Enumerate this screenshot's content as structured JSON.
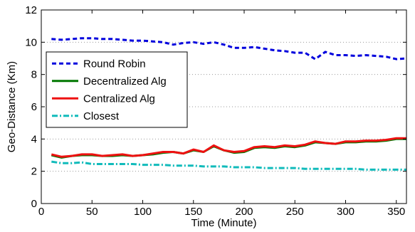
{
  "chart_data": {
    "type": "line",
    "title": "",
    "xlabel": "Time (Minute)",
    "ylabel": "Geo-Distance (Km)",
    "xlim": [
      0,
      360
    ],
    "ylim": [
      0,
      12
    ],
    "x_ticks": [
      0,
      50,
      100,
      150,
      200,
      250,
      300,
      350
    ],
    "y_ticks": [
      0,
      2,
      4,
      6,
      8,
      10,
      12
    ],
    "grid": "horizontal dotted",
    "legend_position": "left",
    "x": [
      10,
      20,
      30,
      40,
      50,
      60,
      70,
      80,
      90,
      100,
      110,
      120,
      130,
      140,
      150,
      160,
      170,
      180,
      190,
      200,
      210,
      220,
      230,
      240,
      250,
      260,
      270,
      280,
      290,
      300,
      310,
      320,
      330,
      340,
      350,
      360
    ],
    "series": [
      {
        "name": "Round Robin",
        "color": "#0000dd",
        "style": "dashed",
        "values": [
          10.2,
          10.15,
          10.2,
          10.25,
          10.25,
          10.2,
          10.2,
          10.15,
          10.1,
          10.1,
          10.05,
          10.0,
          9.85,
          9.95,
          10.0,
          9.9,
          10.0,
          9.85,
          9.65,
          9.65,
          9.7,
          9.6,
          9.5,
          9.45,
          9.35,
          9.35,
          8.95,
          9.4,
          9.2,
          9.2,
          9.15,
          9.2,
          9.15,
          9.1,
          8.95,
          9.0
        ]
      },
      {
        "name": "Decentralized Alg",
        "color": "#007700",
        "style": "solid",
        "values": [
          3.0,
          2.85,
          2.95,
          3.0,
          3.0,
          2.95,
          2.95,
          3.0,
          2.95,
          3.0,
          3.05,
          3.15,
          3.2,
          3.1,
          3.3,
          3.2,
          3.55,
          3.3,
          3.15,
          3.2,
          3.45,
          3.5,
          3.45,
          3.55,
          3.5,
          3.6,
          3.8,
          3.75,
          3.7,
          3.8,
          3.8,
          3.85,
          3.85,
          3.9,
          4.0,
          4.0
        ]
      },
      {
        "name": "Centralized Alg",
        "color": "#ee1111",
        "style": "solid",
        "values": [
          3.05,
          2.9,
          2.95,
          3.05,
          3.05,
          2.95,
          3.0,
          3.05,
          2.95,
          3.0,
          3.1,
          3.2,
          3.2,
          3.1,
          3.35,
          3.2,
          3.6,
          3.3,
          3.2,
          3.25,
          3.5,
          3.55,
          3.5,
          3.6,
          3.55,
          3.65,
          3.85,
          3.75,
          3.7,
          3.85,
          3.85,
          3.9,
          3.9,
          3.95,
          4.05,
          4.05
        ]
      },
      {
        "name": "Closest",
        "color": "#11bbbb",
        "style": "dashdot",
        "values": [
          2.6,
          2.5,
          2.5,
          2.55,
          2.45,
          2.45,
          2.45,
          2.45,
          2.45,
          2.4,
          2.4,
          2.4,
          2.35,
          2.35,
          2.35,
          2.3,
          2.3,
          2.3,
          2.25,
          2.25,
          2.25,
          2.2,
          2.2,
          2.2,
          2.2,
          2.15,
          2.15,
          2.15,
          2.15,
          2.15,
          2.15,
          2.1,
          2.1,
          2.1,
          2.1,
          2.1
        ]
      }
    ]
  }
}
